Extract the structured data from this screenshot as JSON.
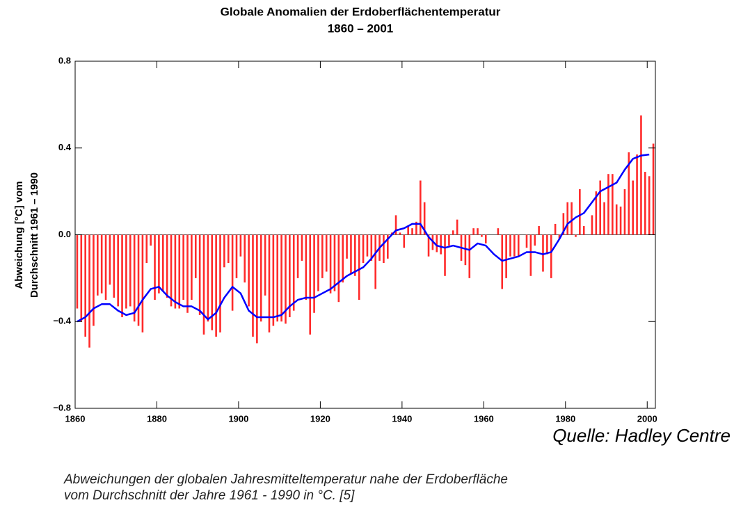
{
  "chart_data": {
    "type": "bar",
    "title": "Globale Anomalien der Erdoberflächentemperatur",
    "subtitle": "1860 – 2001",
    "ylabel": [
      "Abweichung [°C] vom",
      "Durchschnitt 1961 – 1990"
    ],
    "source": "Quelle: Hadley Centre",
    "caption": [
      "Abweichungen der globalen Jahresmitteltemperatur nahe der Erdoberfläche",
      "vom Durchschnitt der Jahre 1961 - 1990 in °C. [5]"
    ],
    "xlim": [
      1860,
      2002
    ],
    "xticks": [
      1860,
      1880,
      1900,
      1920,
      1940,
      1960,
      1980,
      2000
    ],
    "ylim": [
      -0.8,
      0.8
    ],
    "yticks": [
      {
        "value": -0.8,
        "label": "−0.8"
      },
      {
        "value": -0.4,
        "label": "−0.4"
      },
      {
        "value": 0,
        "label": "0.0"
      },
      0.4,
      0.8
    ],
    "x": [
      1860,
      1861,
      1862,
      1863,
      1864,
      1865,
      1866,
      1867,
      1868,
      1869,
      1870,
      1871,
      1872,
      1873,
      1874,
      1875,
      1876,
      1877,
      1878,
      1879,
      1880,
      1881,
      1882,
      1883,
      1884,
      1885,
      1886,
      1887,
      1888,
      1889,
      1890,
      1891,
      1892,
      1893,
      1894,
      1895,
      1896,
      1897,
      1898,
      1899,
      1900,
      1901,
      1902,
      1903,
      1904,
      1905,
      1906,
      1907,
      1908,
      1909,
      1910,
      1911,
      1912,
      1913,
      1914,
      1915,
      1916,
      1917,
      1918,
      1919,
      1920,
      1921,
      1922,
      1923,
      1924,
      1925,
      1926,
      1927,
      1928,
      1929,
      1930,
      1931,
      1932,
      1933,
      1934,
      1935,
      1936,
      1937,
      1938,
      1939,
      1940,
      1941,
      1942,
      1943,
      1944,
      1945,
      1946,
      1947,
      1948,
      1949,
      1950,
      1951,
      1952,
      1953,
      1954,
      1955,
      1956,
      1957,
      1958,
      1959,
      1960,
      1961,
      1962,
      1963,
      1964,
      1965,
      1966,
      1967,
      1968,
      1969,
      1970,
      1971,
      1972,
      1973,
      1974,
      1975,
      1976,
      1977,
      1978,
      1979,
      1980,
      1981,
      1982,
      1983,
      1984,
      1985,
      1986,
      1987,
      1988,
      1989,
      1990,
      1991,
      1992,
      1993,
      1994,
      1995,
      1996,
      1997,
      1998,
      1999,
      2000,
      2001
    ],
    "series": [
      {
        "color": "#ff2a2a",
        "values": [
          -0.34,
          -0.4,
          -0.47,
          -0.52,
          -0.42,
          -0.28,
          -0.27,
          -0.3,
          -0.23,
          -0.29,
          -0.33,
          -0.38,
          -0.34,
          -0.33,
          -0.4,
          -0.42,
          -0.45,
          -0.13,
          -0.05,
          -0.3,
          -0.27,
          -0.26,
          -0.29,
          -0.33,
          -0.34,
          -0.34,
          -0.3,
          -0.36,
          -0.3,
          -0.2,
          -0.37,
          -0.46,
          -0.4,
          -0.44,
          -0.47,
          -0.45,
          -0.15,
          -0.13,
          -0.35,
          -0.2,
          -0.1,
          -0.22,
          -0.33,
          -0.47,
          -0.5,
          -0.4,
          -0.28,
          -0.45,
          -0.42,
          -0.4,
          -0.4,
          -0.41,
          -0.38,
          -0.35,
          -0.2,
          -0.12,
          -0.3,
          -0.46,
          -0.36,
          -0.26,
          -0.2,
          -0.17,
          -0.27,
          -0.26,
          -0.31,
          -0.22,
          -0.11,
          -0.18,
          -0.19,
          -0.3,
          -0.13,
          -0.1,
          -0.12,
          -0.25,
          -0.12,
          -0.13,
          -0.11,
          0.01,
          0.09,
          0.01,
          -0.06,
          0.04,
          0.03,
          0.06,
          0.25,
          0.15,
          -0.1,
          -0.07,
          -0.08,
          -0.09,
          -0.19,
          -0.05,
          0.02,
          0.07,
          -0.12,
          -0.14,
          -0.2,
          0.03,
          0.03,
          -0.01,
          -0.04,
          0.0,
          0.0,
          0.03,
          -0.25,
          -0.2,
          -0.1,
          -0.1,
          -0.1,
          0.0,
          -0.06,
          -0.19,
          -0.05,
          0.04,
          -0.17,
          -0.09,
          -0.2,
          0.05,
          -0.02,
          0.1,
          0.15,
          0.15,
          -0.01,
          0.21,
          0.04,
          0.0,
          0.09,
          0.2,
          0.25,
          0.15,
          0.28,
          0.28,
          0.14,
          0.13,
          0.21,
          0.38,
          0.25,
          0.37,
          0.55,
          0.29,
          0.27,
          0.42
        ]
      },
      {
        "type": "line",
        "color": "#0000ff",
        "x": [
          1860,
          1862,
          1864,
          1866,
          1868,
          1870,
          1872,
          1874,
          1876,
          1878,
          1880,
          1882,
          1884,
          1886,
          1888,
          1890,
          1892,
          1894,
          1896,
          1898,
          1900,
          1902,
          1904,
          1906,
          1908,
          1910,
          1912,
          1914,
          1916,
          1918,
          1920,
          1922,
          1924,
          1926,
          1928,
          1930,
          1932,
          1934,
          1936,
          1938,
          1940,
          1942,
          1944,
          1946,
          1948,
          1950,
          1952,
          1954,
          1956,
          1958,
          1960,
          1962,
          1964,
          1966,
          1968,
          1970,
          1972,
          1974,
          1976,
          1978,
          1980,
          1982,
          1984,
          1986,
          1988,
          1990,
          1992,
          1994,
          1996,
          1998,
          2000
        ],
        "values": [
          -0.4,
          -0.38,
          -0.34,
          -0.32,
          -0.32,
          -0.35,
          -0.37,
          -0.36,
          -0.3,
          -0.25,
          -0.24,
          -0.28,
          -0.31,
          -0.33,
          -0.33,
          -0.35,
          -0.39,
          -0.36,
          -0.29,
          -0.24,
          -0.27,
          -0.35,
          -0.38,
          -0.38,
          -0.38,
          -0.37,
          -0.33,
          -0.3,
          -0.29,
          -0.29,
          -0.27,
          -0.25,
          -0.22,
          -0.19,
          -0.17,
          -0.15,
          -0.11,
          -0.06,
          -0.02,
          0.02,
          0.03,
          0.05,
          0.05,
          -0.01,
          -0.05,
          -0.06,
          -0.05,
          -0.06,
          -0.07,
          -0.04,
          -0.05,
          -0.09,
          -0.12,
          -0.11,
          -0.1,
          -0.08,
          -0.08,
          -0.09,
          -0.08,
          -0.02,
          0.05,
          0.08,
          0.1,
          0.15,
          0.2,
          0.22,
          0.24,
          0.3,
          0.35,
          0.365,
          0.37
        ]
      }
    ]
  }
}
